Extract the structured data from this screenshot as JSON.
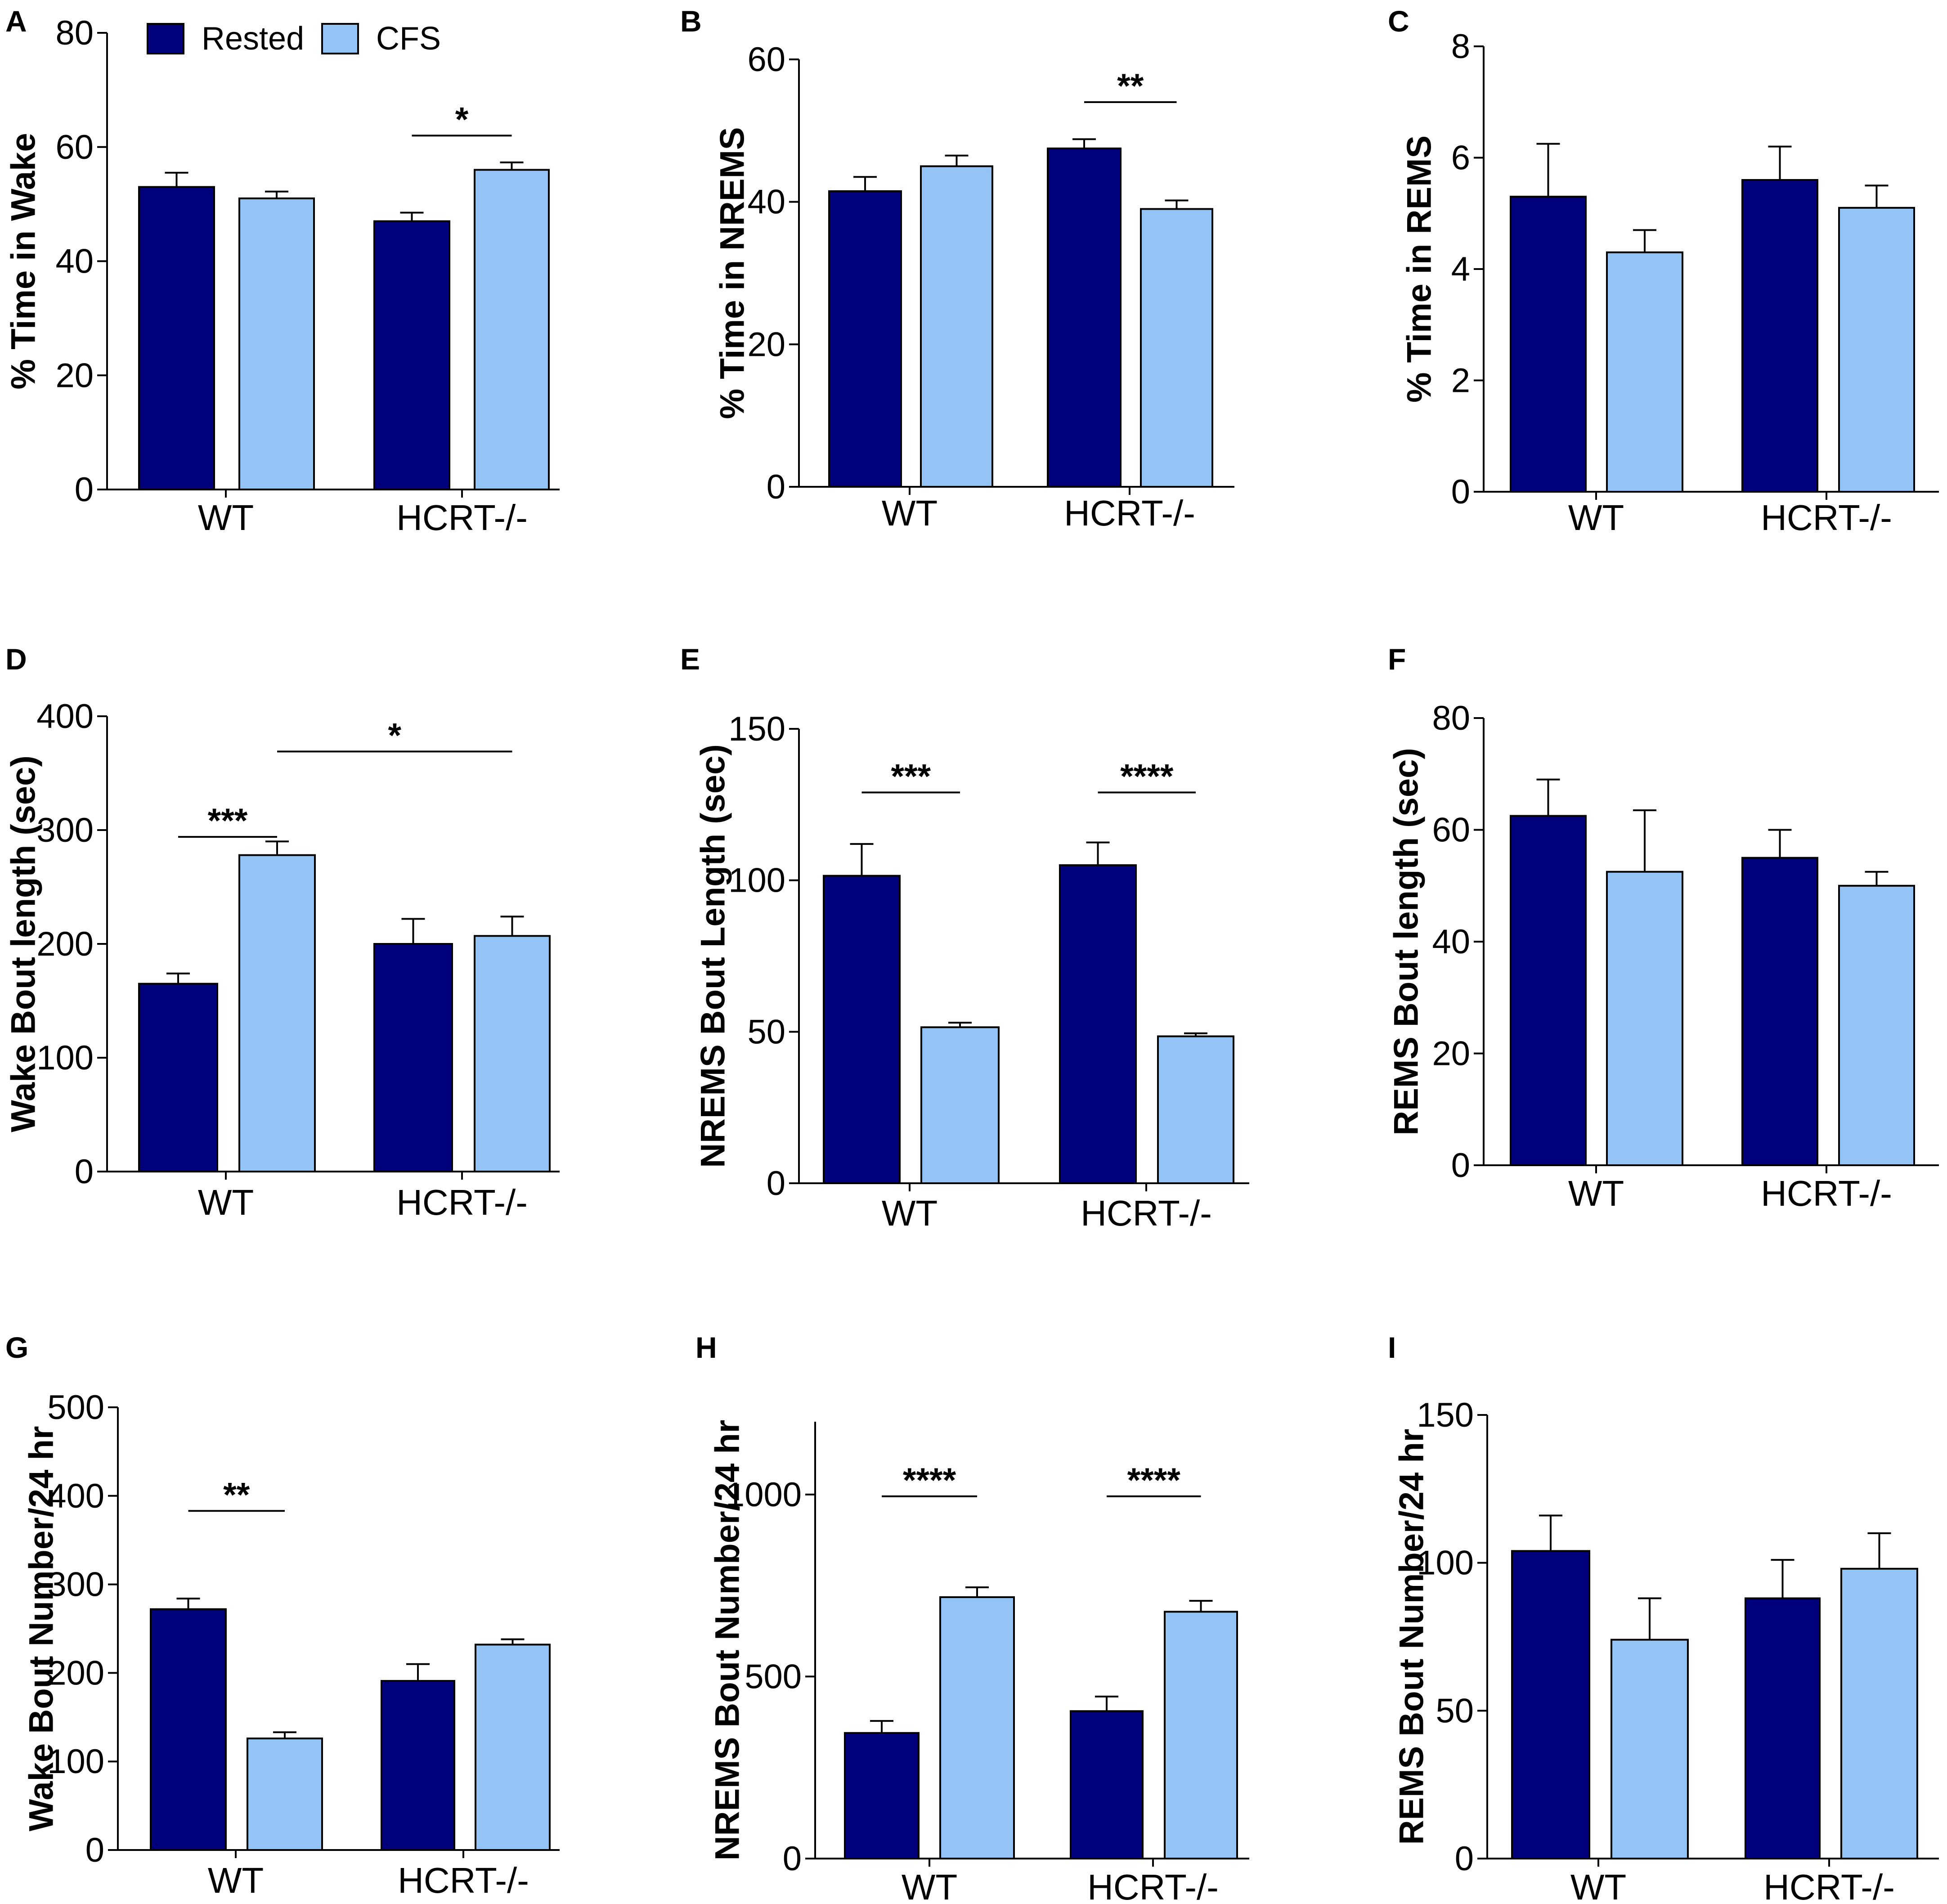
{
  "legend": [
    {
      "label": "Rested",
      "color": "#00007a"
    },
    {
      "label": "CFS",
      "color": "#94c4f5"
    }
  ],
  "colors": {
    "rested": "#00007a",
    "cfs": "#94c4f5",
    "stroke": "#000000"
  },
  "chart_data": [
    {
      "type": "bar",
      "panel": "A",
      "ylabel": "% Time in Wake",
      "categories": [
        "WT",
        "HCRT-/-"
      ],
      "ylim": [
        0,
        80
      ],
      "yticks": [
        0,
        20,
        40,
        60,
        80
      ],
      "series": [
        {
          "name": "Rested",
          "values": [
            53,
            47
          ],
          "errors": [
            2.5,
            1.5
          ]
        },
        {
          "name": "CFS",
          "values": [
            51,
            56
          ],
          "errors": [
            1.2,
            1.3
          ]
        }
      ],
      "significance": [
        {
          "label": "*",
          "from": [
            1,
            0
          ],
          "to": [
            1,
            1
          ],
          "y": 62
        }
      ]
    },
    {
      "type": "bar",
      "panel": "B",
      "ylabel": "% Time in NREMS",
      "categories": [
        "WT",
        "HCRT-/-"
      ],
      "ylim": [
        0,
        60
      ],
      "yticks": [
        0,
        20,
        40,
        60
      ],
      "series": [
        {
          "name": "Rested",
          "values": [
            41.5,
            47.5
          ],
          "errors": [
            2,
            1.3
          ]
        },
        {
          "name": "CFS",
          "values": [
            45,
            39
          ],
          "errors": [
            1.5,
            1.2
          ]
        }
      ],
      "significance": [
        {
          "label": "**",
          "from": [
            1,
            0
          ],
          "to": [
            1,
            1
          ],
          "y": 54
        }
      ]
    },
    {
      "type": "bar",
      "panel": "C",
      "ylabel": "% Time in REMS",
      "categories": [
        "WT",
        "HCRT-/-"
      ],
      "ylim": [
        0,
        8
      ],
      "yticks": [
        0,
        2,
        4,
        6,
        8
      ],
      "series": [
        {
          "name": "Rested",
          "values": [
            5.3,
            5.6
          ],
          "errors": [
            0.95,
            0.6
          ]
        },
        {
          "name": "CFS",
          "values": [
            4.3,
            5.1
          ],
          "errors": [
            0.4,
            0.4
          ]
        }
      ],
      "significance": []
    },
    {
      "type": "bar",
      "panel": "D",
      "ylabel": "Wake Bout length (sec)",
      "categories": [
        "WT",
        "HCRT-/-"
      ],
      "ylim": [
        0,
        400
      ],
      "yticks": [
        0,
        100,
        200,
        300,
        400
      ],
      "series": [
        {
          "name": "Rested",
          "values": [
            165,
            200
          ],
          "errors": [
            9,
            22
          ]
        },
        {
          "name": "CFS",
          "values": [
            278,
            207
          ],
          "errors": [
            12,
            17
          ]
        }
      ],
      "significance": [
        {
          "label": "***",
          "from": [
            0,
            0
          ],
          "to": [
            0,
            1
          ],
          "y": 294
        },
        {
          "label": "*",
          "from": [
            0,
            1
          ],
          "to": [
            1,
            1
          ],
          "y": 369
        }
      ]
    },
    {
      "type": "bar",
      "panel": "E",
      "ylabel": "NREMS Bout Length (sec)",
      "categories": [
        "WT",
        "HCRT-/-"
      ],
      "ylim": [
        0,
        150
      ],
      "yticks": [
        0,
        50,
        100,
        150
      ],
      "series": [
        {
          "name": "Rested",
          "values": [
            101.5,
            105
          ],
          "errors": [
            10.5,
            7.5
          ]
        },
        {
          "name": "CFS",
          "values": [
            51.5,
            48.5
          ],
          "errors": [
            1.5,
            1
          ]
        }
      ],
      "significance": [
        {
          "label": "***",
          "from": [
            0,
            0
          ],
          "to": [
            0,
            1
          ],
          "y": 129
        },
        {
          "label": "****",
          "from": [
            1,
            0
          ],
          "to": [
            1,
            1
          ],
          "y": 129
        }
      ]
    },
    {
      "type": "bar",
      "panel": "F",
      "ylabel": "REMS Bout length (sec)",
      "categories": [
        "WT",
        "HCRT-/-"
      ],
      "ylim": [
        0,
        80
      ],
      "yticks": [
        0,
        20,
        40,
        60,
        80
      ],
      "series": [
        {
          "name": "Rested",
          "values": [
            62.5,
            55
          ],
          "errors": [
            6.5,
            5
          ]
        },
        {
          "name": "CFS",
          "values": [
            52.5,
            50
          ],
          "errors": [
            11,
            2.5
          ]
        }
      ],
      "significance": []
    },
    {
      "type": "bar",
      "panel": "G",
      "ylabel": "Wake Bout Number/24 hr",
      "categories": [
        "WT",
        "HCRT-/-"
      ],
      "ylim": [
        0,
        500
      ],
      "yticks": [
        0,
        100,
        200,
        300,
        400,
        500
      ],
      "series": [
        {
          "name": "Rested",
          "values": [
            272,
            191
          ],
          "errors": [
            12,
            19
          ]
        },
        {
          "name": "CFS",
          "values": [
            126,
            232
          ],
          "errors": [
            7,
            6
          ]
        }
      ],
      "significance": [
        {
          "label": "**",
          "from": [
            0,
            0
          ],
          "to": [
            0,
            1
          ],
          "y": 383
        }
      ]
    },
    {
      "type": "bar",
      "panel": "H",
      "ylabel": "NREMS Bout Number/24 hr",
      "categories": [
        "WT",
        "HCRT-/-"
      ],
      "ylim": [
        0,
        1200
      ],
      "yticks": [
        0,
        500,
        1000
      ],
      "series": [
        {
          "name": "Rested",
          "values": [
            345,
            405
          ],
          "errors": [
            33,
            40
          ]
        },
        {
          "name": "CFS",
          "values": [
            718,
            678
          ],
          "errors": [
            27,
            30
          ]
        }
      ],
      "significance": [
        {
          "label": "****",
          "from": [
            0,
            0
          ],
          "to": [
            0,
            1
          ],
          "y": 995
        },
        {
          "label": "****",
          "from": [
            1,
            0
          ],
          "to": [
            1,
            1
          ],
          "y": 995
        }
      ]
    },
    {
      "type": "bar",
      "panel": "I",
      "ylabel": "REMS Bout Number/24 hr",
      "categories": [
        "WT",
        "HCRT-/-"
      ],
      "ylim": [
        0,
        150
      ],
      "yticks": [
        0,
        50,
        100,
        150
      ],
      "series": [
        {
          "name": "Rested",
          "values": [
            104,
            88
          ],
          "errors": [
            12,
            13
          ]
        },
        {
          "name": "CFS",
          "values": [
            74,
            98
          ],
          "errors": [
            14,
            12
          ]
        }
      ],
      "significance": []
    }
  ]
}
